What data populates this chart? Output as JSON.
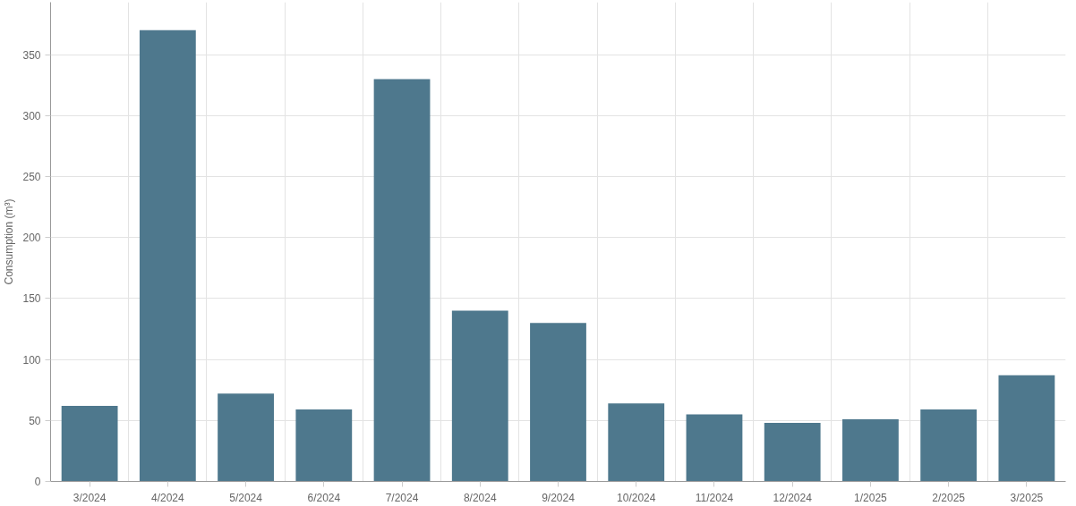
{
  "chart_data": {
    "type": "bar",
    "ylabel": "Consumption (m³)",
    "categories": [
      "3/2024",
      "4/2024",
      "5/2024",
      "6/2024",
      "7/2024",
      "8/2024",
      "9/2024",
      "10/2024",
      "11/2024",
      "12/2024",
      "1/2025",
      "2/2025",
      "3/2025"
    ],
    "values": [
      62,
      370,
      72,
      59,
      330,
      140,
      130,
      64,
      55,
      48,
      51,
      59,
      87
    ],
    "color": "#4e788d",
    "ylim": [
      0,
      393
    ],
    "yticks": [
      0,
      50,
      100,
      150,
      200,
      250,
      300,
      350
    ],
    "grid": true
  }
}
